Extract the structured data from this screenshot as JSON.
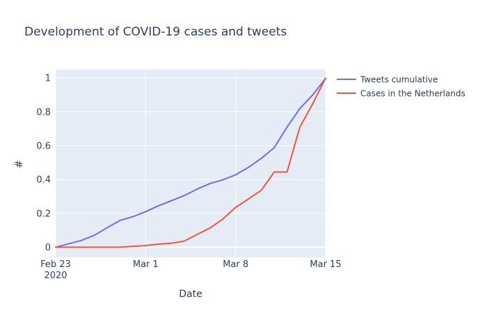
{
  "chart_data": {
    "type": "line",
    "title": "Development of COVID-19 cases and tweets",
    "xlabel": "Date",
    "ylabel": "#",
    "x": [
      "2020-02-23",
      "2020-02-24",
      "2020-02-25",
      "2020-02-26",
      "2020-02-27",
      "2020-02-28",
      "2020-02-29",
      "2020-03-01",
      "2020-03-02",
      "2020-03-03",
      "2020-03-04",
      "2020-03-05",
      "2020-03-06",
      "2020-03-07",
      "2020-03-08",
      "2020-03-09",
      "2020-03-10",
      "2020-03-11",
      "2020-03-12",
      "2020-03-13",
      "2020-03-14",
      "2020-03-15"
    ],
    "xlim": [
      "2020-02-23",
      "2020-03-15"
    ],
    "ylim": [
      -0.06,
      1.05
    ],
    "x_ticks": [
      {
        "date": "2020-02-23",
        "label": "Feb 23",
        "sublabel": "2020"
      },
      {
        "date": "2020-03-01",
        "label": "Mar 1",
        "sublabel": ""
      },
      {
        "date": "2020-03-08",
        "label": "Mar 8",
        "sublabel": ""
      },
      {
        "date": "2020-03-15",
        "label": "Mar 15",
        "sublabel": ""
      }
    ],
    "y_ticks": [
      0,
      0.2,
      0.4,
      0.6,
      0.8,
      1
    ],
    "y_tick_labels": [
      "0",
      "0.2",
      "0.4",
      "0.6",
      "0.8",
      "1"
    ],
    "series": [
      {
        "name": "Tweets cumulative",
        "color": "#636efa",
        "values": [
          0.0,
          0.02,
          0.04,
          0.07,
          0.115,
          0.158,
          0.18,
          0.21,
          0.245,
          0.275,
          0.305,
          0.343,
          0.376,
          0.398,
          0.428,
          0.472,
          0.525,
          0.588,
          0.71,
          0.82,
          0.9,
          0.998
        ]
      },
      {
        "name": "Cases in the Netherlands",
        "color": "#ef553b",
        "values": [
          0.0,
          0.0,
          0.0,
          0.0,
          0.0,
          0.0,
          0.005,
          0.01,
          0.018,
          0.023,
          0.036,
          0.075,
          0.113,
          0.166,
          0.235,
          0.285,
          0.337,
          0.444,
          0.444,
          0.71,
          0.848,
          1.0
        ]
      }
    ],
    "grid": true,
    "legend_position": "top-right",
    "plot_background": "#e5ecf6"
  }
}
